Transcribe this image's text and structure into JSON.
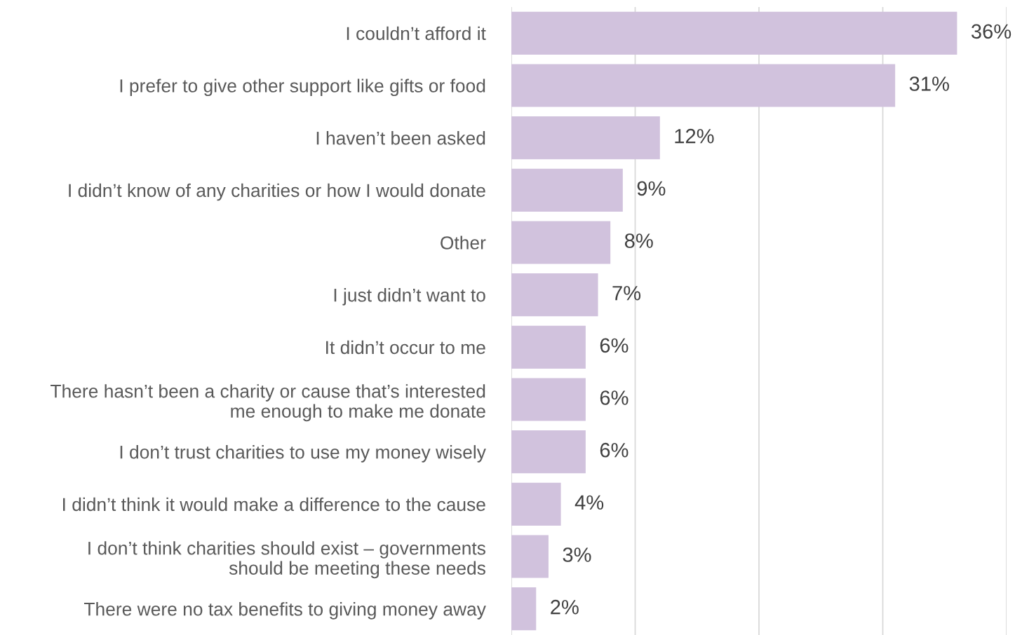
{
  "chart_data": {
    "type": "bar",
    "orientation": "horizontal",
    "categories": [
      "I couldn’t afford it",
      "I prefer to give other support like gifts or food",
      "I haven’t been asked",
      "I didn’t know of any charities or how I would donate",
      "Other",
      "I just didn’t want to",
      "It didn’t occur to me",
      "There hasn’t been a charity or cause that’s interested\nme enough to make me donate",
      "I don’t trust charities to use my money wisely",
      "I didn’t think it would make a difference to the cause",
      "I don’t think charities should exist – governments\nshould be meeting these needs",
      "There were no tax benefits to giving money away"
    ],
    "values": [
      36,
      31,
      12,
      9,
      8,
      7,
      6,
      6,
      6,
      4,
      3,
      2
    ],
    "value_labels": [
      "36%",
      "31%",
      "12%",
      "9%",
      "8%",
      "7%",
      "6%",
      "6%",
      "6%",
      "4%",
      "3%",
      "2%"
    ],
    "color": "#d1c2dd",
    "xlim": [
      0,
      40
    ],
    "xticks": [
      {
        "value": 0,
        "label": null
      },
      {
        "value": 10,
        "label": null
      },
      {
        "value": 20,
        "label": null
      },
      {
        "value": 30,
        "label": null
      },
      {
        "value": 40,
        "label": null
      }
    ],
    "grid": "x",
    "tick_labels": "y",
    "legend": false
  }
}
